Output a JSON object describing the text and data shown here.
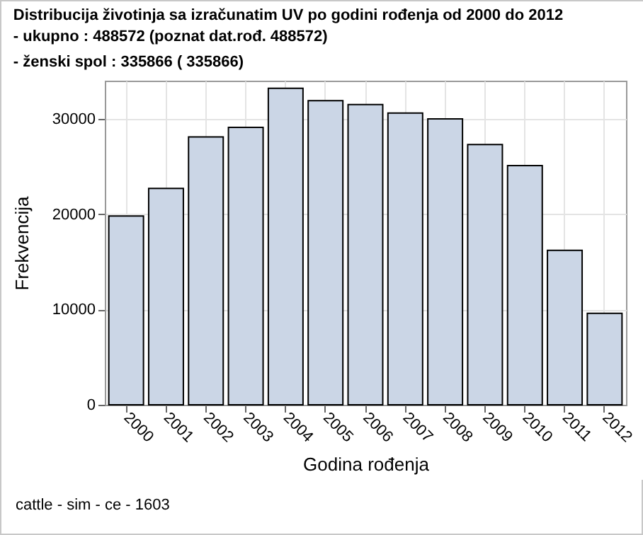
{
  "chart_data": {
    "type": "bar",
    "title": "Distribucija životinja sa izračunatim UV po godini rođenja od 2000 do 2012",
    "subtitle": "- ukupno :   488572 (poznat dat.rođ.   488572)\n- ženski spol :   335866 (  335866)",
    "xlabel": "Godina rođenja",
    "ylabel": "Frekvencija",
    "categories": [
      "2000",
      "2001",
      "2002",
      "2003",
      "2004",
      "2005",
      "2006",
      "2007",
      "2008",
      "2009",
      "2010",
      "2011",
      "2012"
    ],
    "values": [
      19800,
      22700,
      28100,
      29100,
      33200,
      31900,
      31500,
      30600,
      30000,
      27300,
      25100,
      16200,
      9600
    ],
    "color": "#cbd6e6",
    "ylim": [
      0,
      34000
    ],
    "yticks": [
      0,
      10000,
      20000,
      30000
    ],
    "grid": true,
    "annotations": [
      "cattle - sim - ce - 1603"
    ]
  }
}
